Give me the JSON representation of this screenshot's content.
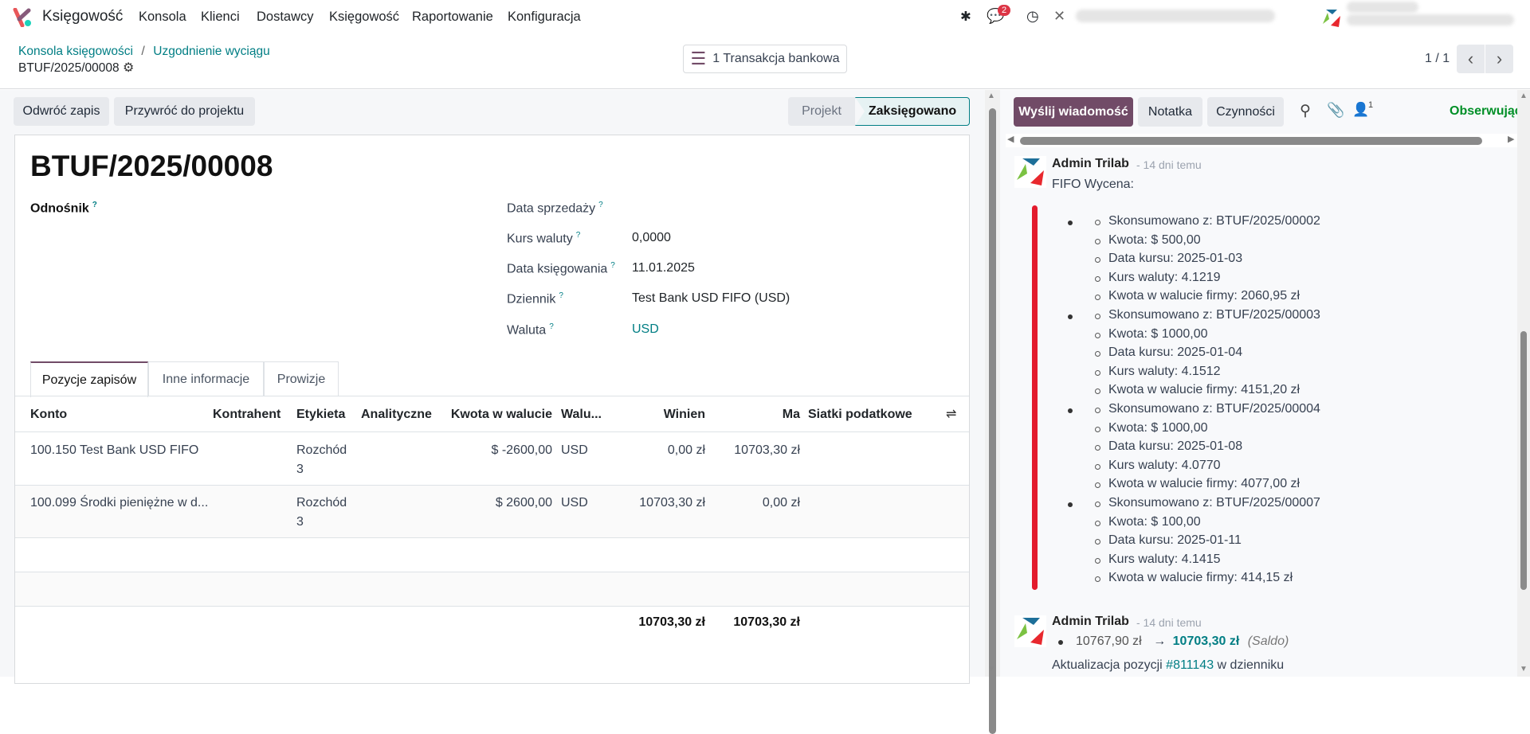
{
  "navbar": {
    "app_name": "Księgowość",
    "menu": [
      "Konsola",
      "Klienci",
      "Dostawcy",
      "Księgowość",
      "Raportowanie",
      "Konfiguracja"
    ],
    "messages_badge": "2"
  },
  "control_panel": {
    "breadcrumb": [
      "Konsola księgowości",
      "Uzgodnienie wyciągu"
    ],
    "record": "BTUF/2025/00008",
    "smart_button": "1 Transakcja bankowa",
    "pager": "1 / 1"
  },
  "actions": {
    "reverse": "Odwróć zapis",
    "reset": "Przywróć do projektu"
  },
  "status": {
    "steps": [
      "Projekt",
      "Zaksięgowano"
    ],
    "active": "Zaksięgowano"
  },
  "form": {
    "title": "BTUF/2025/00008",
    "ref_label": "Odnośnik",
    "help": "?",
    "fields": [
      {
        "label": "Data sprzedaży",
        "value": ""
      },
      {
        "label": "Kurs waluty",
        "value": "0,0000"
      },
      {
        "label": "Data księgowania",
        "value": "11.01.2025"
      },
      {
        "label": "Dziennik",
        "value": "Test Bank USD FIFO (USD)"
      },
      {
        "label": "Waluta",
        "value": "USD"
      }
    ]
  },
  "tabs": [
    "Pozycje zapisów",
    "Inne informacje",
    "Prowizje"
  ],
  "table": {
    "headers": [
      "Konto",
      "Kontrahent",
      "Etykieta",
      "Analityczne",
      "Kwota w walucie",
      "Walu...",
      "Winien",
      "Ma",
      "Siatki podatkowe"
    ],
    "rows": [
      {
        "konto": "100.150 Test Bank USD FIFO",
        "etykieta1": "Rozchód",
        "etykieta2": "3",
        "kwota": "$ -2600,00",
        "waluta": "USD",
        "winien": "0,00 zł",
        "ma": "10703,30 zł"
      },
      {
        "konto": "100.099 Środki pieniężne w d...",
        "etykieta1": "Rozchód",
        "etykieta2": "3",
        "kwota": "$ 2600,00",
        "waluta": "USD",
        "winien": "10703,30 zł",
        "ma": "0,00 zł"
      }
    ],
    "totals": {
      "winien": "10703,30 zł",
      "ma": "10703,30 zł"
    }
  },
  "chatter": {
    "send": "Wyślij wiadomość",
    "note": "Notatka",
    "activities": "Czynności",
    "followers_count": "1",
    "follow": "Obserwując",
    "messages": [
      {
        "author": "Admin Trilab",
        "time": "- 14 dni temu",
        "title": "FIFO Wycena:",
        "groups": [
          [
            "Skonsumowano z: BTUF/2025/00002",
            "Kwota: $ 500,00",
            "Data kursu: 2025-01-03",
            "Kurs waluty: 4.1219",
            "Kwota w walucie firmy: 2060,95 zł"
          ],
          [
            "Skonsumowano z: BTUF/2025/00003",
            "Kwota: $ 1000,00",
            "Data kursu: 2025-01-04",
            "Kurs waluty: 4.1512",
            "Kwota w walucie firmy: 4151,20 zł"
          ],
          [
            "Skonsumowano z: BTUF/2025/00004",
            "Kwota: $ 1000,00",
            "Data kursu: 2025-01-08",
            "Kurs waluty: 4.0770",
            "Kwota w walucie firmy: 4077,00 zł"
          ],
          [
            "Skonsumowano z: BTUF/2025/00007",
            "Kwota: $ 100,00",
            "Data kursu: 2025-01-11",
            "Kurs waluty: 4.1415",
            "Kwota w walucie firmy: 414,15 zł"
          ]
        ]
      },
      {
        "author": "Admin Trilab",
        "time": "- 14 dni temu",
        "old": "10767,90 zł",
        "arrow": "→",
        "new": "10703,30 zł",
        "field": "(Saldo)",
        "text_pre": "Aktualizacja pozycji ",
        "link": "#811143",
        "text_post": " w dzienniku"
      }
    ]
  }
}
